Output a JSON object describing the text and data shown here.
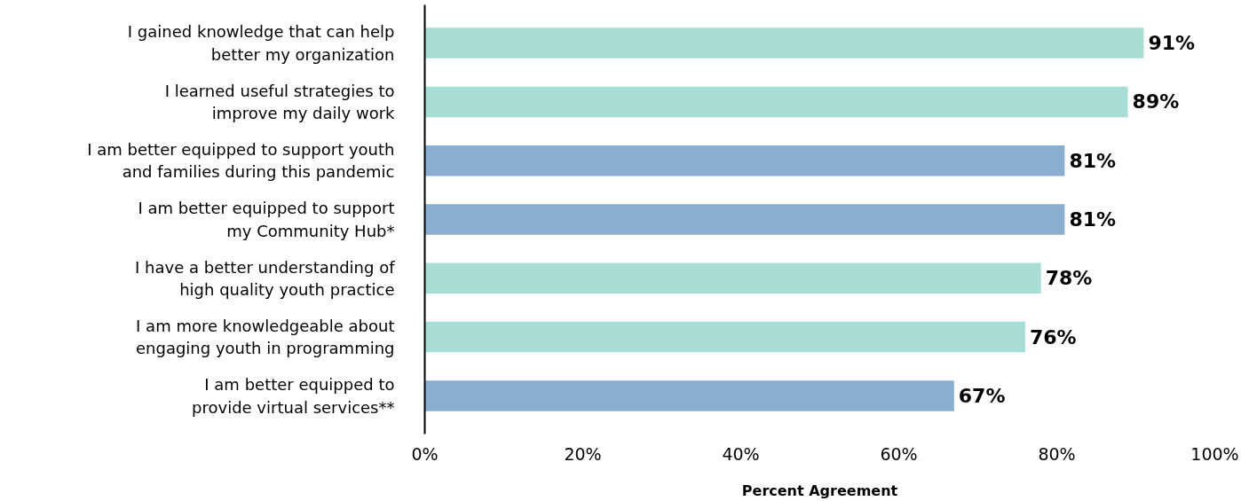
{
  "chart_data": {
    "type": "bar",
    "orientation": "horizontal",
    "xlabel": "Percent Agreement",
    "categories": [
      "I gained knowledge that can help\nbetter my organization",
      "I learned useful strategies to\nimprove my daily work",
      "I am better equipped to support youth\nand families during this pandemic",
      "I am better equipped to support\nmy Community Hub*",
      "I have a better understanding of\nhigh quality youth practice",
      "I am more knowledgeable about\nengaging youth in programming",
      "I am better equipped to\nprovide virtual services**"
    ],
    "values": [
      91,
      89,
      81,
      81,
      78,
      76,
      67
    ],
    "colors": [
      "#a8ddd6",
      "#a8ddd6",
      "#8aaed0",
      "#8aaed0",
      "#a8ddd6",
      "#a8ddd6",
      "#8aaed0"
    ],
    "value_labels": [
      "91%",
      "89%",
      "81%",
      "81%",
      "78%",
      "76%",
      "67%"
    ],
    "xlim": [
      0,
      100
    ],
    "xticks": [
      {
        "value": 0,
        "label": "0%"
      },
      {
        "value": 20,
        "label": "20%"
      },
      {
        "value": 40,
        "label": "40%"
      },
      {
        "value": 60,
        "label": "60%"
      },
      {
        "value": 80,
        "label": "80%"
      },
      {
        "value": 100,
        "label": "100%"
      }
    ],
    "grid": false
  }
}
